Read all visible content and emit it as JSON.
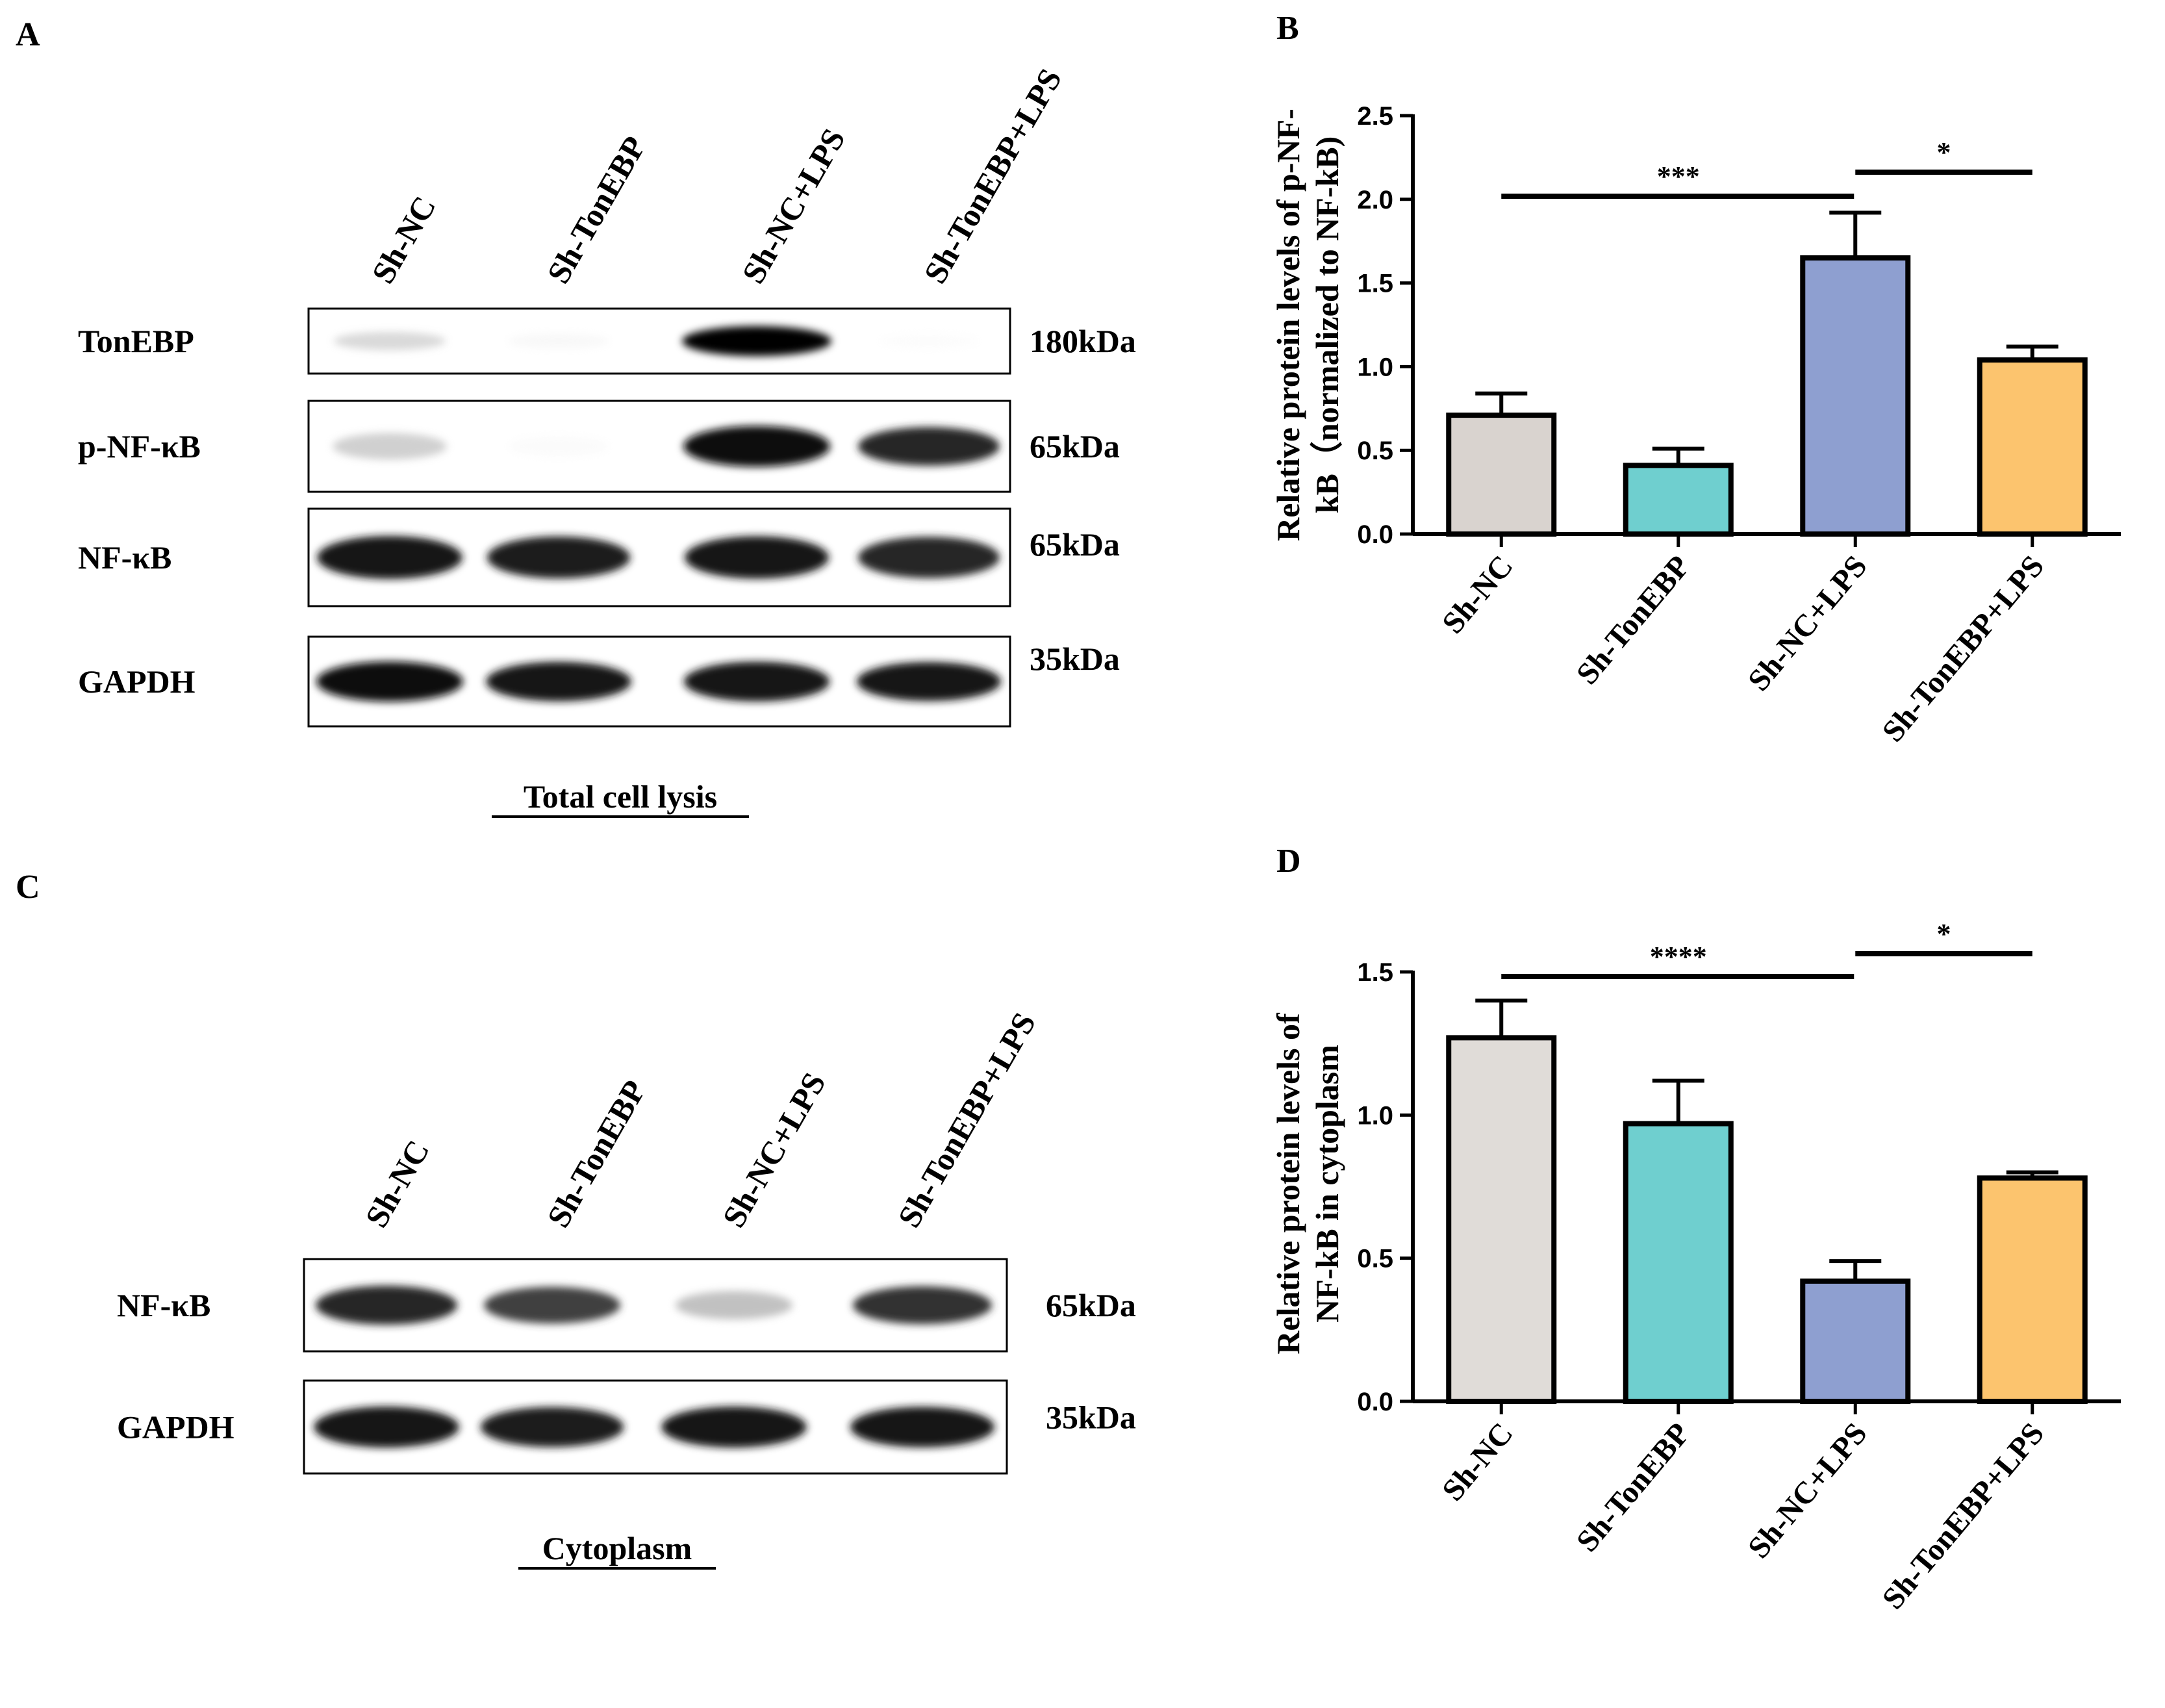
{
  "panels": {
    "A": {
      "letter": "A",
      "lanes": [
        "Sh-NC",
        "Sh-TonEBP",
        "Sh-NC+LPS",
        "Sh-TonEBP+LPS"
      ],
      "rows": [
        {
          "protein": "TonEBP",
          "kda": "180kDa",
          "intensities": [
            0.28,
            0.08,
            1.0,
            0.04
          ]
        },
        {
          "protein": "p-NF-κB",
          "kda": "65kDa",
          "intensities": [
            0.32,
            0.05,
            0.95,
            0.85
          ]
        },
        {
          "protein": "NF-κB",
          "kda": "65kDa",
          "intensities": [
            0.92,
            0.88,
            0.9,
            0.85
          ]
        },
        {
          "protein": "GAPDH",
          "kda": "35kDa",
          "intensities": [
            0.95,
            0.92,
            0.93,
            0.9
          ]
        }
      ],
      "caption": "Total cell lysis"
    },
    "C": {
      "letter": "C",
      "lanes": [
        "Sh-NC",
        "Sh-TonEBP",
        "Sh-NC+LPS",
        "Sh-TonEBP+LPS"
      ],
      "rows": [
        {
          "protein": "NF-κB",
          "kda": "65kDa",
          "intensities": [
            0.85,
            0.75,
            0.38,
            0.8
          ]
        },
        {
          "protein": "GAPDH",
          "kda": "35kDa",
          "intensities": [
            0.92,
            0.88,
            0.92,
            0.9
          ]
        }
      ],
      "caption": "Cytoplasm"
    }
  },
  "chart_data": [
    {
      "panel": "B",
      "letter": "B",
      "type": "bar",
      "categories": [
        "Sh-NC",
        "Sh-TonEBP",
        "Sh-NC+LPS",
        "Sh-TonEBP+LPS"
      ],
      "values": [
        0.71,
        0.41,
        1.65,
        1.04
      ],
      "errors": [
        0.13,
        0.1,
        0.27,
        0.08
      ],
      "colors": [
        "#d9d3cf",
        "#6fcfcf",
        "#8e9fd0",
        "#fcc46e"
      ],
      "ylabel_lines": [
        "Relative protein levels of p-NF-",
        "kB（normalized to NF-kB)"
      ],
      "ylim": [
        0,
        2.5
      ],
      "yticks": [
        0.0,
        0.5,
        1.0,
        1.5,
        2.0,
        2.5
      ],
      "tick_labels": [
        "0.0",
        "0.5",
        "1.0",
        "1.5",
        "2.0",
        "2.5"
      ],
      "significance": [
        {
          "from": 0,
          "to": 2,
          "label": "***"
        },
        {
          "from": 2,
          "to": 3,
          "label": "*"
        }
      ]
    },
    {
      "panel": "D",
      "letter": "D",
      "type": "bar",
      "categories": [
        "Sh-NC",
        "Sh-TonEBP",
        "Sh-NC+LPS",
        "Sh-TonEBP+LPS"
      ],
      "values": [
        1.27,
        0.97,
        0.42,
        0.78
      ],
      "errors": [
        0.13,
        0.15,
        0.07,
        0.02
      ],
      "colors": [
        "#e0dcd8",
        "#6fcfcf",
        "#8e9fd0",
        "#fcc46e"
      ],
      "ylabel_lines": [
        "Relative protein levels of",
        "NF-kB in cytoplasm"
      ],
      "ylim": [
        0,
        1.5
      ],
      "yticks": [
        0.0,
        0.5,
        1.0,
        1.5
      ],
      "tick_labels": [
        "0.0",
        "0.5",
        "1.0",
        "1.5"
      ],
      "significance": [
        {
          "from": 0,
          "to": 2,
          "label": "****"
        },
        {
          "from": 2,
          "to": 3,
          "label": "*"
        }
      ]
    }
  ]
}
